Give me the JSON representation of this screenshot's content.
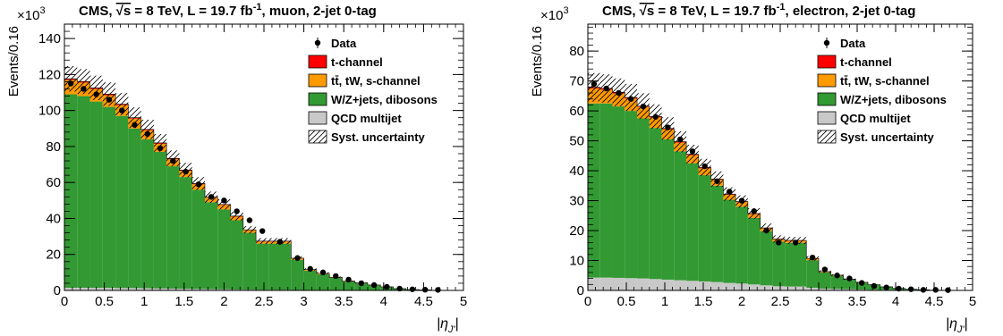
{
  "chart_data": [
    {
      "type": "bar",
      "stacked": true,
      "title": "CMS, √s = 8 TeV, L = 19.7 fb⁻¹, muon, 2-jet 0-tag",
      "title_parts": {
        "cms": "CMS, ",
        "sqrt": "√s",
        "mid": " = 8 TeV, L = 19.7 fb",
        "sup": "-1",
        "tail": ", muon, 2-jet 0-tag"
      },
      "exponent_label": "×10",
      "exponent": "3",
      "ylabel": "Events/0.16",
      "xlabel": "|ηJ'|",
      "xlabel_parts": {
        "main": "|η",
        "sub": "J'",
        "end": "|"
      },
      "xlim": [
        0,
        5
      ],
      "ylim": [
        0,
        148
      ],
      "x_ticks": [
        "0",
        "0.5",
        "1",
        "1.5",
        "2",
        "2.5",
        "3",
        "3.5",
        "4",
        "4.5",
        "5"
      ],
      "y_ticks": [
        "0",
        "20",
        "40",
        "60",
        "80",
        "100",
        "120",
        "140"
      ],
      "bin_edges": [
        0,
        0.16,
        0.32,
        0.48,
        0.64,
        0.8,
        0.96,
        1.12,
        1.28,
        1.44,
        1.6,
        1.76,
        1.92,
        2.08,
        2.24,
        2.4,
        2.56,
        2.84,
        3.0,
        3.16,
        3.32,
        3.48,
        3.64,
        3.8,
        3.96,
        4.12,
        4.28,
        4.44,
        4.6,
        4.76
      ],
      "series": [
        {
          "name": "QCD multijet",
          "color": "#c8c8c8",
          "values": [
            1.5,
            1.5,
            1.4,
            1.4,
            1.3,
            1.3,
            1.2,
            1.1,
            1.0,
            0.9,
            0.8,
            0.7,
            0.6,
            0.5,
            0.4,
            0.3,
            0.3,
            0.2,
            0.2,
            0.1,
            0.1,
            0.1,
            0.1,
            0,
            0,
            0,
            0,
            0,
            0
          ]
        },
        {
          "name": "W/Z+jets, dibosons",
          "color": "#339933",
          "values": [
            107.5,
            106.5,
            103.6,
            100.6,
            95.7,
            88.7,
            82.8,
            75.9,
            68,
            62.1,
            55.2,
            48.3,
            44.4,
            38.5,
            31.6,
            25.7,
            25.7,
            16.8,
            10.8,
            8.9,
            6.9,
            4.9,
            3.9,
            2.9,
            1.9,
            1,
            0.5,
            0.3,
            0.1
          ]
        },
        {
          "name": "tt̄, tW, s-channel",
          "color": "#ff9a00",
          "values": [
            8,
            7.5,
            7,
            6.5,
            6,
            5.5,
            5,
            4.5,
            4,
            3.5,
            3,
            2.5,
            2.5,
            2,
            1.5,
            1.2,
            1.2,
            0.8,
            0.5,
            0.4,
            0.3,
            0.2,
            0.2,
            0.1,
            0.1,
            0,
            0,
            0,
            0
          ]
        },
        {
          "name": "t-channel",
          "color": "#ff0000",
          "values": [
            0.6,
            0.6,
            0.6,
            0.6,
            0.5,
            0.5,
            0.5,
            0.5,
            0.4,
            0.4,
            0.4,
            0.3,
            0.3,
            0.3,
            0.2,
            0.2,
            0.2,
            0.1,
            0.1,
            0.1,
            0,
            0,
            0,
            0,
            0,
            0,
            0,
            0,
            0
          ]
        }
      ],
      "data_points": {
        "name": "Data",
        "x": [
          0.08,
          0.24,
          0.4,
          0.56,
          0.72,
          0.88,
          1.04,
          1.2,
          1.36,
          1.52,
          1.68,
          1.84,
          2.0,
          2.16,
          2.32,
          2.48,
          2.7,
          2.92,
          3.08,
          3.24,
          3.4,
          3.56,
          3.72,
          3.88,
          4.04,
          4.2,
          4.36,
          4.52,
          4.68
        ],
        "y": [
          115,
          112,
          109,
          106,
          100,
          92,
          87,
          79,
          72,
          66,
          59,
          52,
          50,
          44,
          39,
          33,
          27,
          18,
          12,
          10,
          8,
          6,
          4,
          3,
          2,
          1,
          0.6,
          0.4,
          0.3
        ]
      },
      "uncertainty_frac": 0.06,
      "legend": [
        "Data",
        "t-channel",
        "tt̄, tW, s-channel",
        "W/Z+jets, dibosons",
        "QCD multijet",
        "Syst. uncertainty"
      ],
      "legend_placement": "top-right",
      "grid": false
    },
    {
      "type": "bar",
      "stacked": true,
      "title": "CMS, √s = 8 TeV, L = 19.7 fb⁻¹, electron, 2-jet 0-tag",
      "title_parts": {
        "cms": "CMS, ",
        "sqrt": "√s",
        "mid": " = 8 TeV, L = 19.7 fb",
        "sup": "-1",
        "tail": ", electron, 2-jet 0-tag"
      },
      "exponent_label": "×10",
      "exponent": "3",
      "ylabel": "Events/0.16",
      "xlabel": "|ηJ'|",
      "xlabel_parts": {
        "main": "|η",
        "sub": "J'",
        "end": "|"
      },
      "xlim": [
        0,
        5
      ],
      "ylim": [
        0,
        89
      ],
      "x_ticks": [
        "0",
        "0.5",
        "1",
        "1.5",
        "2",
        "2.5",
        "3",
        "3.5",
        "4",
        "4.5",
        "5"
      ],
      "y_ticks": [
        "0",
        "10",
        "20",
        "30",
        "40",
        "50",
        "60",
        "70",
        "80"
      ],
      "bin_edges": [
        0,
        0.16,
        0.32,
        0.48,
        0.64,
        0.8,
        0.96,
        1.12,
        1.28,
        1.44,
        1.6,
        1.76,
        1.92,
        2.08,
        2.24,
        2.4,
        2.56,
        2.84,
        3.0,
        3.16,
        3.32,
        3.48,
        3.64,
        3.8,
        3.96,
        4.12,
        4.28,
        4.44,
        4.6,
        4.76
      ],
      "series": [
        {
          "name": "QCD multijet",
          "color": "#c8c8c8",
          "values": [
            4.3,
            4.3,
            4.2,
            4.1,
            4.0,
            3.8,
            3.6,
            3.4,
            3.2,
            3.0,
            2.8,
            2.5,
            2.3,
            2.0,
            1.7,
            1.4,
            1.3,
            0.9,
            0.6,
            0.5,
            0.4,
            0.3,
            0.2,
            0.2,
            0.1,
            0.1,
            0,
            0,
            0
          ]
        },
        {
          "name": "W/Z+jets, dibosons",
          "color": "#339933",
          "values": [
            58.2,
            58.2,
            57.3,
            55.9,
            53.5,
            50.5,
            46.9,
            43.1,
            39.3,
            35.5,
            32.2,
            27.8,
            25.7,
            22.2,
            18.1,
            14.9,
            14.6,
            9.2,
            5.4,
            4.4,
            3.3,
            2.3,
            1.6,
            1.0,
            0.6,
            0.3,
            0.2,
            0.1,
            0
          ]
        },
        {
          "name": "tt̄, tW, s-channel",
          "color": "#ff9a00",
          "values": [
            5,
            4.6,
            4.3,
            4.1,
            3.8,
            3.5,
            3.3,
            2.9,
            2.7,
            2.3,
            2.0,
            1.7,
            1.5,
            1.3,
            1.0,
            0.8,
            0.7,
            0.5,
            0.3,
            0.2,
            0.1,
            0.1,
            0.1,
            0,
            0,
            0,
            0,
            0,
            0
          ]
        },
        {
          "name": "t-channel",
          "color": "#ff0000",
          "values": [
            0.4,
            0.4,
            0.4,
            0.4,
            0.3,
            0.3,
            0.3,
            0.3,
            0.3,
            0.3,
            0.2,
            0.2,
            0.2,
            0.2,
            0.1,
            0.1,
            0.1,
            0.1,
            0,
            0,
            0,
            0,
            0,
            0,
            0,
            0,
            0,
            0,
            0
          ]
        }
      ],
      "data_points": {
        "name": "Data",
        "x": [
          0.08,
          0.24,
          0.4,
          0.56,
          0.72,
          0.88,
          1.04,
          1.2,
          1.36,
          1.52,
          1.68,
          1.84,
          2.0,
          2.16,
          2.32,
          2.48,
          2.7,
          2.92,
          3.08,
          3.24,
          3.4,
          3.56,
          3.72,
          3.88,
          4.04,
          4.2,
          4.36,
          4.52,
          4.68
        ],
        "y": [
          69,
          67.5,
          66,
          64,
          61.5,
          58,
          54.5,
          50.5,
          46.5,
          41.5,
          36.5,
          33,
          30,
          26.5,
          20,
          16,
          16,
          11,
          7,
          5,
          4,
          2.5,
          1.5,
          1,
          0.6,
          0.4,
          0.2,
          0.2,
          0.1
        ]
      },
      "uncertainty_frac": 0.07,
      "legend": [
        "Data",
        "t-channel",
        "tt̄, tW, s-channel",
        "W/Z+jets, dibosons",
        "QCD multijet",
        "Syst. uncertainty"
      ],
      "legend_placement": "top-right",
      "grid": false
    }
  ]
}
